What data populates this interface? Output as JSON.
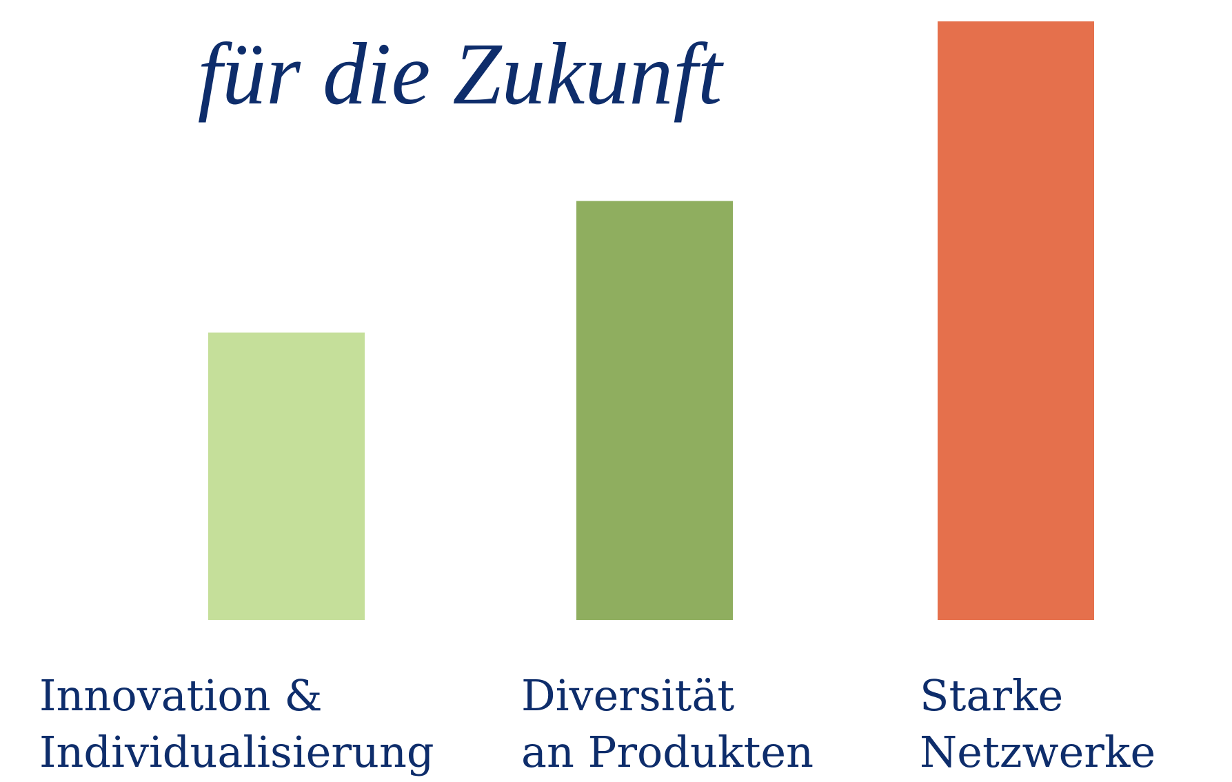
{
  "chart_data": {
    "type": "bar",
    "title": "für die Zukunft",
    "categories": [
      [
        "Innovation &",
        "Individualisierung"
      ],
      [
        "Diversität",
        "an Produkten"
      ],
      [
        "Starke",
        "Netzwerke"
      ]
    ],
    "values": [
      48,
      70,
      100
    ],
    "colors": [
      "#c5df9a",
      "#8fae5f",
      "#e5704c"
    ]
  }
}
